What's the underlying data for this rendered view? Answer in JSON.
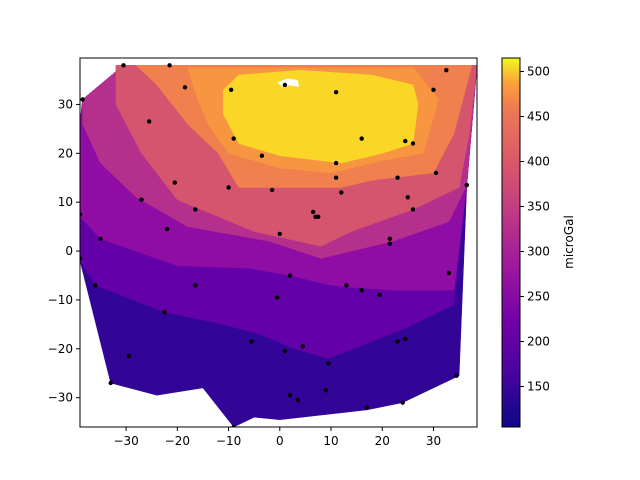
{
  "chart_data": {
    "type": "contour",
    "colormap": "plasma",
    "title": "",
    "xlabel": "",
    "ylabel": "",
    "xlim": [
      -39,
      38.5
    ],
    "ylim": [
      -36,
      39.5
    ],
    "xticks": [
      -30,
      -20,
      -10,
      0,
      10,
      20,
      30
    ],
    "yticks": [
      -30,
      -20,
      -10,
      0,
      10,
      20,
      30
    ],
    "colorbar": {
      "label": "microGal",
      "range": [
        105,
        515
      ],
      "ticks": [
        150,
        200,
        250,
        300,
        350,
        400,
        450,
        500
      ]
    },
    "levels": [
      {
        "min": 100,
        "max": 150,
        "color": "#330597"
      },
      {
        "min": 150,
        "max": 200,
        "color": "#6300a7"
      },
      {
        "min": 200,
        "max": 250,
        "color": "#8f0da4"
      },
      {
        "min": 250,
        "max": 300,
        "color": "#b52f8c"
      },
      {
        "min": 300,
        "max": 350,
        "color": "#d5546e"
      },
      {
        "min": 350,
        "max": 400,
        "color": "#f0804e"
      },
      {
        "min": 400,
        "max": 450,
        "color": "#f89540"
      },
      {
        "min": 450,
        "max": 500,
        "color": "#fad626"
      }
    ],
    "stations": [
      [
        -30.5,
        38
      ],
      [
        -21.5,
        38
      ],
      [
        -38.5,
        31
      ],
      [
        -18.5,
        33.5
      ],
      [
        -9.5,
        33
      ],
      [
        1,
        34
      ],
      [
        11,
        32.5
      ],
      [
        32.5,
        37
      ],
      [
        30,
        33
      ],
      [
        -25.5,
        26.5
      ],
      [
        -9,
        23
      ],
      [
        -3.5,
        19.5
      ],
      [
        11,
        18
      ],
      [
        16,
        23
      ],
      [
        24.5,
        22.5
      ],
      [
        26,
        22
      ],
      [
        30.5,
        16
      ],
      [
        36.5,
        13.5
      ],
      [
        -20.5,
        14
      ],
      [
        -10,
        13
      ],
      [
        -1.5,
        12.5
      ],
      [
        11,
        15
      ],
      [
        12,
        12
      ],
      [
        23,
        15
      ],
      [
        25,
        11
      ],
      [
        26,
        8.5
      ],
      [
        -27,
        10.5
      ],
      [
        -16.5,
        8.5
      ],
      [
        6.5,
        8
      ],
      [
        7,
        7
      ],
      [
        7.5,
        7
      ],
      [
        -39,
        7.5
      ],
      [
        -35,
        2.5
      ],
      [
        -22,
        4.5
      ],
      [
        0,
        3.5
      ],
      [
        21.5,
        2.5
      ],
      [
        21.5,
        1.5
      ],
      [
        -39,
        -1.5
      ],
      [
        -36,
        -7
      ],
      [
        -16.5,
        -7
      ],
      [
        2,
        -5
      ],
      [
        -0.5,
        -9.5
      ],
      [
        13,
        -7
      ],
      [
        16,
        -8
      ],
      [
        19.5,
        -9
      ],
      [
        33,
        -4.5
      ],
      [
        -22.5,
        -12.5
      ],
      [
        -5.5,
        -18.5
      ],
      [
        1,
        -20.5
      ],
      [
        4.5,
        -19.5
      ],
      [
        9.5,
        -23
      ],
      [
        23,
        -18.5
      ],
      [
        24.5,
        -18
      ],
      [
        -29.5,
        -21.5
      ],
      [
        -33,
        -27
      ],
      [
        9,
        -28.5
      ],
      [
        2,
        -29.5
      ],
      [
        3.5,
        -30.5
      ],
      [
        17,
        -32
      ],
      [
        24,
        -31
      ],
      [
        34.5,
        -25.5
      ],
      [
        -9,
        -36
      ]
    ]
  }
}
